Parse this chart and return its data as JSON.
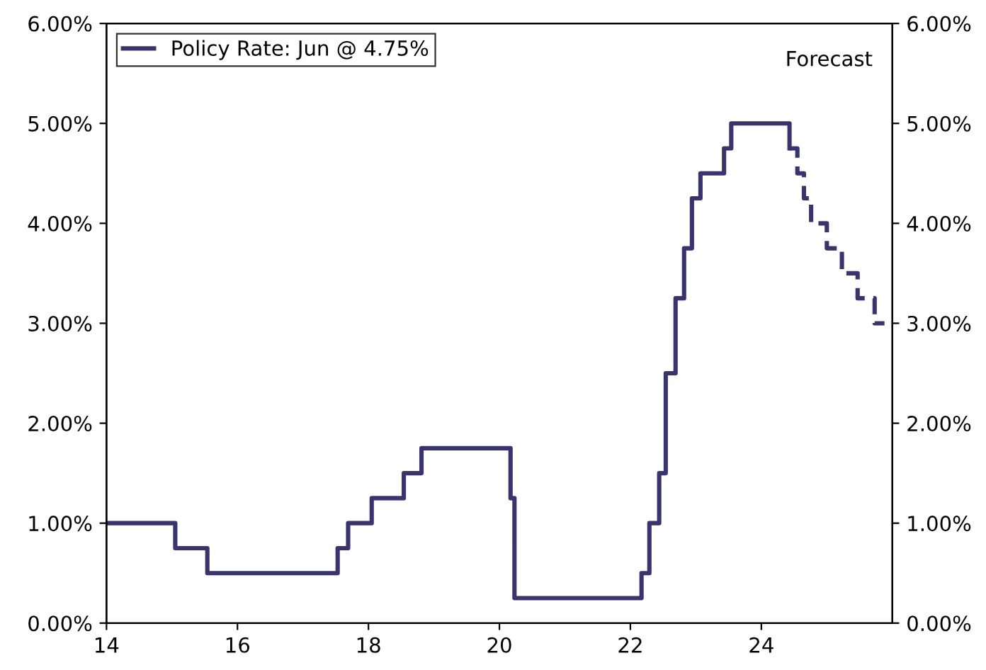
{
  "chart_data": {
    "type": "step",
    "series": [
      {
        "name": "Policy Rate: Jun @ 4.75%",
        "color": "#3b3370",
        "line_style": "solid",
        "x": [
          14.0,
          15.05,
          15.54,
          17.53,
          17.69,
          18.05,
          18.54,
          18.81,
          20.17,
          20.23,
          22.17,
          22.29,
          22.44,
          22.54,
          22.69,
          22.82,
          22.94,
          23.07,
          23.43,
          23.54,
          24.43
        ],
        "values": [
          1.0,
          0.75,
          0.5,
          0.75,
          1.0,
          1.25,
          1.5,
          1.75,
          1.25,
          0.25,
          0.5,
          1.0,
          1.5,
          2.5,
          3.25,
          3.75,
          4.25,
          4.5,
          4.75,
          5.0,
          4.75
        ]
      },
      {
        "color": "#3b3370",
        "line_style": "dashed",
        "x": [
          24.43,
          24.55,
          24.65,
          24.76,
          25.0,
          25.23,
          25.47,
          25.73,
          25.88
        ],
        "values": [
          4.75,
          4.5,
          4.25,
          4.0,
          3.75,
          3.5,
          3.25,
          3.0,
          3.0
        ]
      }
    ],
    "xlim": [
      14,
      26
    ],
    "xticks": [
      14,
      16,
      18,
      20,
      22,
      24
    ],
    "ylim": [
      0,
      6
    ],
    "yticks": [
      {
        "value": 0,
        "label": "0.00%"
      },
      {
        "value": 1,
        "label": "1.00%"
      },
      {
        "value": 2,
        "label": "2.00%"
      },
      {
        "value": 3,
        "label": "3.00%"
      },
      {
        "value": 4,
        "label": "4.00%"
      },
      {
        "value": 5,
        "label": "5.00%"
      },
      {
        "value": 6,
        "label": "6.00%"
      }
    ],
    "y2lim": [
      0,
      6
    ],
    "y2ticks": [
      {
        "value": 0,
        "label": "0.00%"
      },
      {
        "value": 1,
        "label": "1.00%"
      },
      {
        "value": 2,
        "label": "2.00%"
      },
      {
        "value": 3,
        "label": "3.00%"
      },
      {
        "value": 4,
        "label": "4.00%"
      },
      {
        "value": 5,
        "label": "5.00%"
      },
      {
        "value": 6,
        "label": "6.00%"
      }
    ],
    "annotations": [
      "Forecast"
    ],
    "legend": "top left",
    "grid": false
  }
}
